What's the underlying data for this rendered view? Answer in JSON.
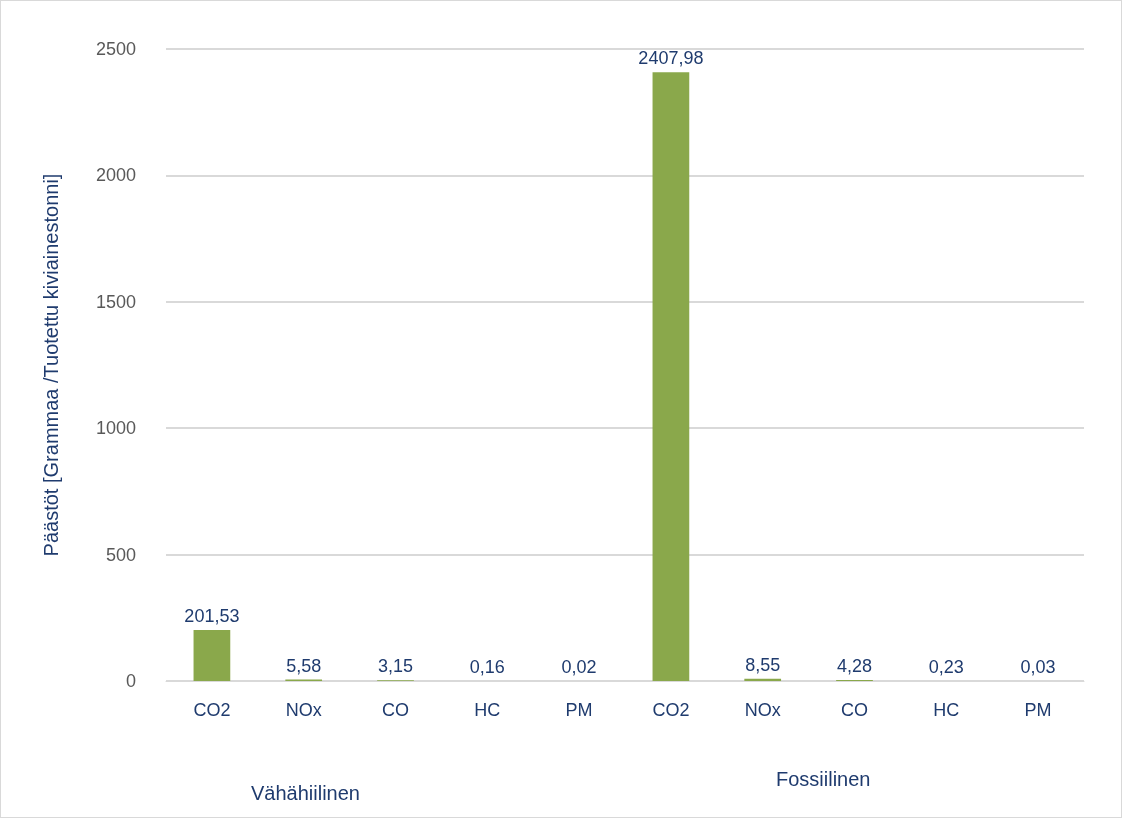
{
  "chart_data": {
    "type": "bar",
    "ylabel": "Päästöt [Grammaa /Tuotettu kiviainestonni]",
    "categories": [
      "CO2",
      "NOx",
      "CO",
      "HC",
      "PM",
      "CO2",
      "NOx",
      "CO",
      "HC",
      "PM"
    ],
    "values": [
      201.53,
      5.58,
      3.15,
      0.16,
      0.02,
      2407.98,
      8.55,
      4.28,
      0.23,
      0.03
    ],
    "value_labels": [
      "201,53",
      "5,58",
      "3,15",
      "0,16",
      "0,02",
      "2407,98",
      "8,55",
      "4,28",
      "0,23",
      "0,03"
    ],
    "color": "#8aa84b",
    "ylim": [
      0,
      2500
    ],
    "yticks": [
      0,
      500,
      1000,
      1500,
      2000,
      2500
    ],
    "grid": "y",
    "annotations": [
      "Vähähiilinen",
      "Fossiilinen"
    ]
  }
}
